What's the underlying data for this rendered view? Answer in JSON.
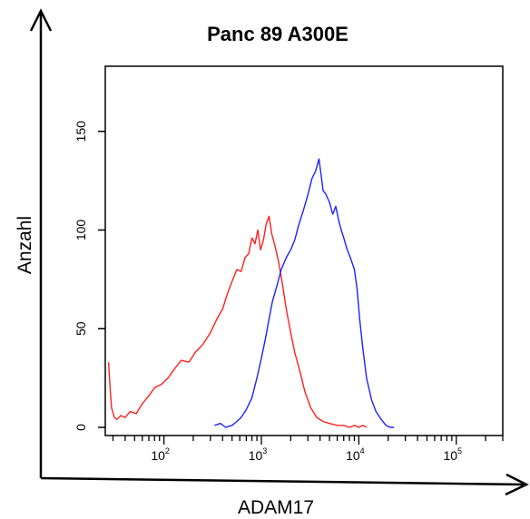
{
  "chart_data": {
    "type": "line",
    "title": "Panc 89 A300E",
    "xlabel": "ADAM17",
    "ylabel": "Anzahl",
    "xscale": "log",
    "xlim": [
      25,
      300000
    ],
    "ylim": [
      0,
      183
    ],
    "x_ticks": [
      {
        "value": 100,
        "base": "10",
        "exp": "2"
      },
      {
        "value": 1000,
        "base": "10",
        "exp": "3"
      },
      {
        "value": 10000,
        "base": "10",
        "exp": "4"
      },
      {
        "value": 100000,
        "base": "10",
        "exp": "5"
      }
    ],
    "y_ticks": [
      "0",
      "50",
      "100",
      "150"
    ],
    "y_tick_values": [
      0,
      50,
      100,
      150
    ],
    "grid": false,
    "legend": "none",
    "series": [
      {
        "color": "#ff2020",
        "x": [
          27,
          28,
          29,
          31,
          33,
          36,
          40,
          45,
          52,
          60,
          70,
          80,
          95,
          110,
          130,
          150,
          180,
          210,
          250,
          300,
          350,
          400,
          450,
          500,
          560,
          620,
          680,
          740,
          800,
          860,
          920,
          980,
          1050,
          1120,
          1200,
          1280,
          1380,
          1500,
          1650,
          1800,
          2000,
          2200,
          2500,
          2800,
          3200,
          3700,
          4300,
          5000,
          6000,
          7000,
          8000,
          9000,
          10000,
          11000,
          12000
        ],
        "y": [
          33,
          20,
          10,
          5,
          4,
          6,
          5,
          8,
          7,
          12,
          16,
          20,
          22,
          25,
          30,
          34,
          33,
          38,
          42,
          48,
          55,
          60,
          68,
          74,
          80,
          79,
          86,
          88,
          96,
          93,
          100,
          90,
          95,
          103,
          107,
          98,
          92,
          84,
          72,
          60,
          48,
          38,
          28,
          18,
          10,
          5,
          3,
          2,
          1,
          1,
          0,
          1,
          0,
          1,
          0
        ]
      },
      {
        "color": "#2020ff",
        "x": [
          330,
          380,
          430,
          500,
          560,
          620,
          700,
          800,
          900,
          1000,
          1100,
          1200,
          1300,
          1450,
          1600,
          1800,
          2000,
          2200,
          2400,
          2700,
          3000,
          3300,
          3600,
          3900,
          4100,
          4300,
          4600,
          5000,
          5400,
          5800,
          6200,
          6600,
          7000,
          7600,
          8200,
          9000,
          9600,
          10200,
          11000,
          12000,
          13500,
          15000,
          17000,
          19000,
          21000,
          23000
        ],
        "y": [
          1,
          2,
          0,
          1,
          3,
          5,
          9,
          15,
          25,
          35,
          45,
          55,
          64,
          72,
          80,
          86,
          90,
          95,
          102,
          110,
          118,
          126,
          130,
          136,
          128,
          120,
          118,
          114,
          108,
          112,
          105,
          100,
          96,
          90,
          86,
          80,
          70,
          55,
          40,
          25,
          14,
          8,
          4,
          1,
          0,
          0
        ]
      }
    ]
  }
}
